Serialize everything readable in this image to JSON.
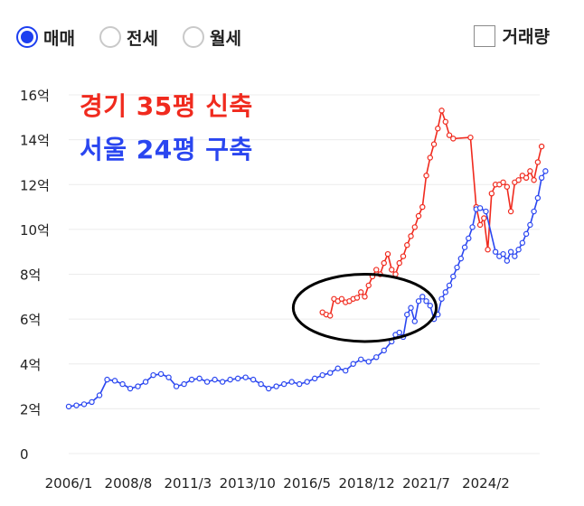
{
  "controls": {
    "radios": [
      {
        "label": "매매",
        "checked": true
      },
      {
        "label": "전세",
        "checked": false
      },
      {
        "label": "월세",
        "checked": false
      }
    ],
    "volume_checkbox": {
      "label": "거래량",
      "checked": false
    }
  },
  "colors": {
    "accent": "#1d3ff0",
    "red_series": "#f02a1e",
    "blue_series": "#2a46f0"
  },
  "chart_data": {
    "type": "line",
    "title": "",
    "xlabel": "",
    "ylabel": "",
    "ylim": [
      0,
      16
    ],
    "y_ticks": [
      0,
      2,
      4,
      6,
      8,
      10,
      12,
      14,
      16
    ],
    "y_tick_labels": [
      "0",
      "2억",
      "4억",
      "6억",
      "8억",
      "10억",
      "12억",
      "14억",
      "16억"
    ],
    "x_range": [
      "2006-01",
      "2026-06"
    ],
    "x_tick_labels": [
      {
        "x": "2006-01",
        "label": "2006/1"
      },
      {
        "x": "2008-08",
        "label": "2008/8"
      },
      {
        "x": "2011-03",
        "label": "2011/3"
      },
      {
        "x": "2013-10",
        "label": "2013/10"
      },
      {
        "x": "2016-05",
        "label": "2016/5"
      },
      {
        "x": "2018-12",
        "label": "2018/12"
      },
      {
        "x": "2021-07",
        "label": "2021/7"
      },
      {
        "x": "2024-02",
        "label": "2024/2"
      }
    ],
    "grid": true,
    "annotation": {
      "type": "ellipse",
      "center": [
        "2018-11",
        6.5
      ],
      "rx_years": 3.1,
      "ry": 1.5
    },
    "series": [
      {
        "name": "경기 35평 신축",
        "color": "#f02a1e",
        "points": [
          [
            "2017-01",
            6.3
          ],
          [
            "2017-03",
            6.2
          ],
          [
            "2017-05",
            6.15
          ],
          [
            "2017-07",
            6.9
          ],
          [
            "2017-09",
            6.8
          ],
          [
            "2017-11",
            6.9
          ],
          [
            "2018-01",
            6.75
          ],
          [
            "2018-03",
            6.8
          ],
          [
            "2018-05",
            6.9
          ],
          [
            "2018-07",
            6.95
          ],
          [
            "2018-09",
            7.2
          ],
          [
            "2018-11",
            7.0
          ],
          [
            "2019-01",
            7.5
          ],
          [
            "2019-03",
            7.9
          ],
          [
            "2019-05",
            8.2
          ],
          [
            "2019-07",
            8.0
          ],
          [
            "2019-09",
            8.5
          ],
          [
            "2019-11",
            8.9
          ],
          [
            "2020-01",
            8.2
          ],
          [
            "2020-03",
            8.0
          ],
          [
            "2020-05",
            8.5
          ],
          [
            "2020-07",
            8.8
          ],
          [
            "2020-09",
            9.3
          ],
          [
            "2020-11",
            9.7
          ],
          [
            "2021-01",
            10.1
          ],
          [
            "2021-03",
            10.6
          ],
          [
            "2021-05",
            11.0
          ],
          [
            "2021-07",
            12.4
          ],
          [
            "2021-09",
            13.2
          ],
          [
            "2021-11",
            13.8
          ],
          [
            "2022-01",
            14.5
          ],
          [
            "2022-03",
            15.3
          ],
          [
            "2022-05",
            14.8
          ],
          [
            "2022-07",
            14.2
          ],
          [
            "2022-09",
            14.05
          ],
          [
            "2023-06",
            14.1
          ],
          [
            "2023-09",
            11.0
          ],
          [
            "2023-11",
            10.2
          ],
          [
            "2024-01",
            10.5
          ],
          [
            "2024-03",
            9.1
          ],
          [
            "2024-05",
            11.6
          ],
          [
            "2024-07",
            12.0
          ],
          [
            "2024-09",
            12.0
          ],
          [
            "2024-11",
            12.1
          ],
          [
            "2025-01",
            11.9
          ],
          [
            "2025-03",
            10.8
          ],
          [
            "2025-05",
            12.1
          ],
          [
            "2025-07",
            12.2
          ],
          [
            "2025-09",
            12.4
          ],
          [
            "2025-11",
            12.3
          ],
          [
            "2026-01",
            12.6
          ],
          [
            "2026-03",
            12.2
          ],
          [
            "2026-05",
            13.0
          ],
          [
            "2026-07",
            13.7
          ]
        ]
      },
      {
        "name": "서울 24평 구축",
        "color": "#2a46f0",
        "points": [
          [
            "2006-01",
            2.1
          ],
          [
            "2006-05",
            2.15
          ],
          [
            "2006-09",
            2.2
          ],
          [
            "2007-01",
            2.3
          ],
          [
            "2007-05",
            2.6
          ],
          [
            "2007-09",
            3.3
          ],
          [
            "2008-01",
            3.25
          ],
          [
            "2008-05",
            3.1
          ],
          [
            "2008-09",
            2.9
          ],
          [
            "2009-01",
            3.0
          ],
          [
            "2009-05",
            3.2
          ],
          [
            "2009-09",
            3.5
          ],
          [
            "2010-01",
            3.55
          ],
          [
            "2010-05",
            3.4
          ],
          [
            "2010-09",
            3.0
          ],
          [
            "2011-01",
            3.1
          ],
          [
            "2011-05",
            3.3
          ],
          [
            "2011-09",
            3.35
          ],
          [
            "2012-01",
            3.2
          ],
          [
            "2012-05",
            3.3
          ],
          [
            "2012-09",
            3.2
          ],
          [
            "2013-01",
            3.3
          ],
          [
            "2013-05",
            3.35
          ],
          [
            "2013-09",
            3.4
          ],
          [
            "2014-01",
            3.3
          ],
          [
            "2014-05",
            3.1
          ],
          [
            "2014-09",
            2.9
          ],
          [
            "2015-01",
            3.0
          ],
          [
            "2015-05",
            3.1
          ],
          [
            "2015-09",
            3.2
          ],
          [
            "2016-01",
            3.1
          ],
          [
            "2016-05",
            3.2
          ],
          [
            "2016-09",
            3.35
          ],
          [
            "2017-01",
            3.5
          ],
          [
            "2017-05",
            3.6
          ],
          [
            "2017-09",
            3.8
          ],
          [
            "2018-01",
            3.7
          ],
          [
            "2018-05",
            4.0
          ],
          [
            "2018-09",
            4.2
          ],
          [
            "2019-01",
            4.1
          ],
          [
            "2019-05",
            4.3
          ],
          [
            "2019-09",
            4.6
          ],
          [
            "2020-01",
            5.0
          ],
          [
            "2020-03",
            5.3
          ],
          [
            "2020-05",
            5.4
          ],
          [
            "2020-07",
            5.2
          ],
          [
            "2020-09",
            6.2
          ],
          [
            "2020-11",
            6.5
          ],
          [
            "2021-01",
            5.9
          ],
          [
            "2021-03",
            6.8
          ],
          [
            "2021-05",
            7.0
          ],
          [
            "2021-07",
            6.8
          ],
          [
            "2021-09",
            6.6
          ],
          [
            "2021-11",
            6.0
          ],
          [
            "2022-01",
            6.2
          ],
          [
            "2022-03",
            6.9
          ],
          [
            "2022-05",
            7.2
          ],
          [
            "2022-07",
            7.5
          ],
          [
            "2022-09",
            7.9
          ],
          [
            "2022-11",
            8.3
          ],
          [
            "2023-01",
            8.7
          ],
          [
            "2023-03",
            9.2
          ],
          [
            "2023-05",
            9.6
          ],
          [
            "2023-07",
            10.1
          ],
          [
            "2023-09",
            10.9
          ],
          [
            "2023-11",
            10.95
          ],
          [
            "2024-02",
            10.8
          ],
          [
            "2024-07",
            9.0
          ],
          [
            "2024-09",
            8.8
          ],
          [
            "2024-11",
            8.9
          ],
          [
            "2025-01",
            8.6
          ],
          [
            "2025-03",
            9.0
          ],
          [
            "2025-05",
            8.8
          ],
          [
            "2025-07",
            9.1
          ],
          [
            "2025-09",
            9.4
          ],
          [
            "2025-11",
            9.8
          ],
          [
            "2026-01",
            10.2
          ],
          [
            "2026-03",
            10.8
          ],
          [
            "2026-05",
            11.4
          ],
          [
            "2026-07",
            12.3
          ],
          [
            "2026-09",
            12.6
          ]
        ]
      }
    ]
  }
}
